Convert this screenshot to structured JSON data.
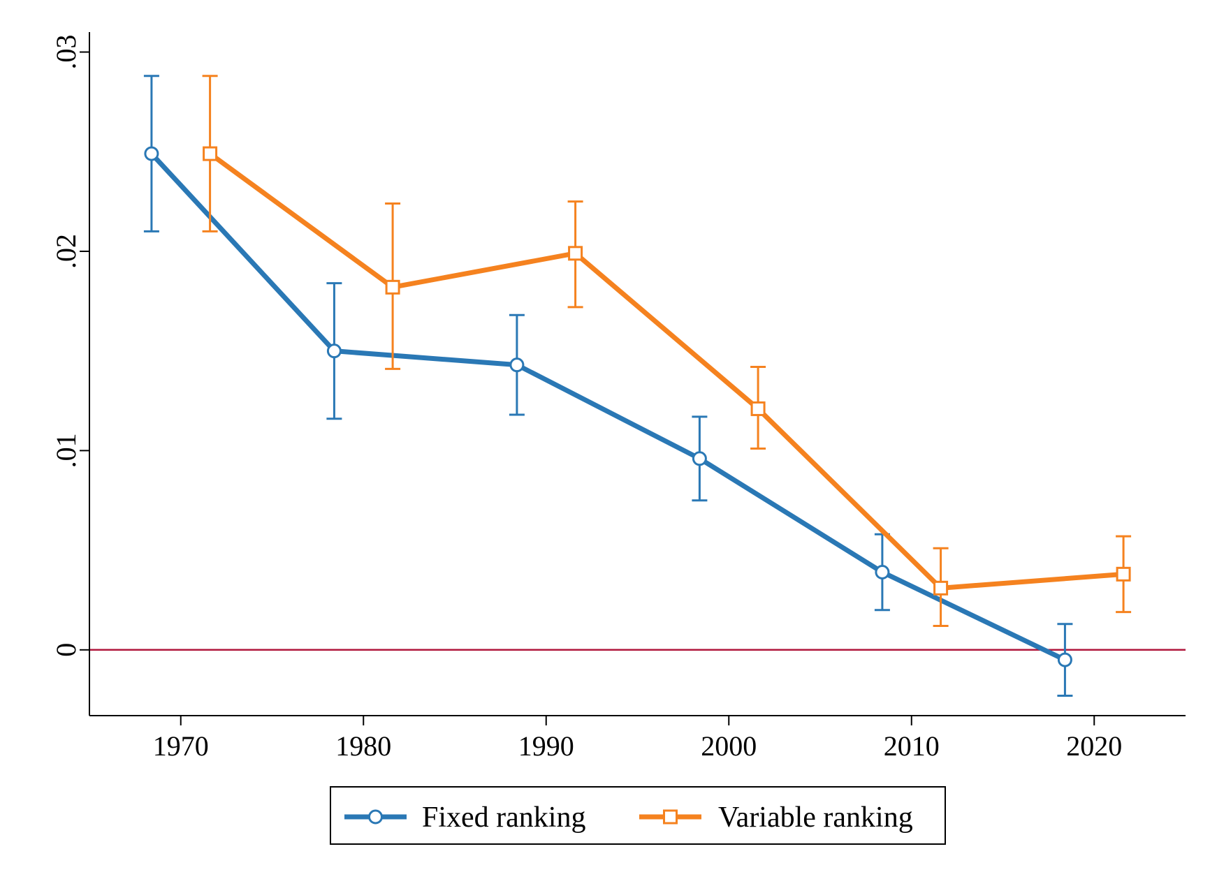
{
  "chart_data": {
    "type": "line",
    "title": "",
    "xlabel": "",
    "ylabel": "",
    "xlim": [
      1965,
      2025
    ],
    "ylim": [
      -0.0033,
      0.031
    ],
    "x_ticks": [
      {
        "value": 1970,
        "label": "1970"
      },
      {
        "value": 1980,
        "label": "1980"
      },
      {
        "value": 1990,
        "label": "1990"
      },
      {
        "value": 2000,
        "label": "2000"
      },
      {
        "value": 2010,
        "label": "2010"
      },
      {
        "value": 2020,
        "label": "2020"
      }
    ],
    "y_ticks": [
      {
        "value": 0,
        "label": "0"
      },
      {
        "value": 0.01,
        "label": ".01"
      },
      {
        "value": 0.02,
        "label": ".02"
      },
      {
        "value": 0.03,
        "label": ".03"
      }
    ],
    "reference_line": {
      "y": 0,
      "color": "#b0173c"
    },
    "grid": false,
    "legend_position": "bottom",
    "series": [
      {
        "name": "Fixed ranking",
        "color": "#2a78b5",
        "marker": "circle",
        "points": [
          {
            "x": 1968.4,
            "y": 0.0249,
            "lo": 0.021,
            "hi": 0.0288
          },
          {
            "x": 1978.4,
            "y": 0.015,
            "lo": 0.0116,
            "hi": 0.0184
          },
          {
            "x": 1988.4,
            "y": 0.0143,
            "lo": 0.0118,
            "hi": 0.0168
          },
          {
            "x": 1998.4,
            "y": 0.0096,
            "lo": 0.0075,
            "hi": 0.0117
          },
          {
            "x": 2008.4,
            "y": 0.0039,
            "lo": 0.002,
            "hi": 0.0058
          },
          {
            "x": 2018.4,
            "y": -0.0005,
            "lo": -0.0023,
            "hi": 0.0013
          }
        ]
      },
      {
        "name": "Variable ranking",
        "color": "#f5821f",
        "marker": "square",
        "points": [
          {
            "x": 1971.6,
            "y": 0.0249,
            "lo": 0.021,
            "hi": 0.0288
          },
          {
            "x": 1981.6,
            "y": 0.0182,
            "lo": 0.0141,
            "hi": 0.0224
          },
          {
            "x": 1991.6,
            "y": 0.0199,
            "lo": 0.0172,
            "hi": 0.0225
          },
          {
            "x": 2001.6,
            "y": 0.0121,
            "lo": 0.0101,
            "hi": 0.0142
          },
          {
            "x": 2011.6,
            "y": 0.0031,
            "lo": 0.0012,
            "hi": 0.0051
          },
          {
            "x": 2021.6,
            "y": 0.0038,
            "lo": 0.0019,
            "hi": 0.0057
          }
        ]
      }
    ]
  }
}
